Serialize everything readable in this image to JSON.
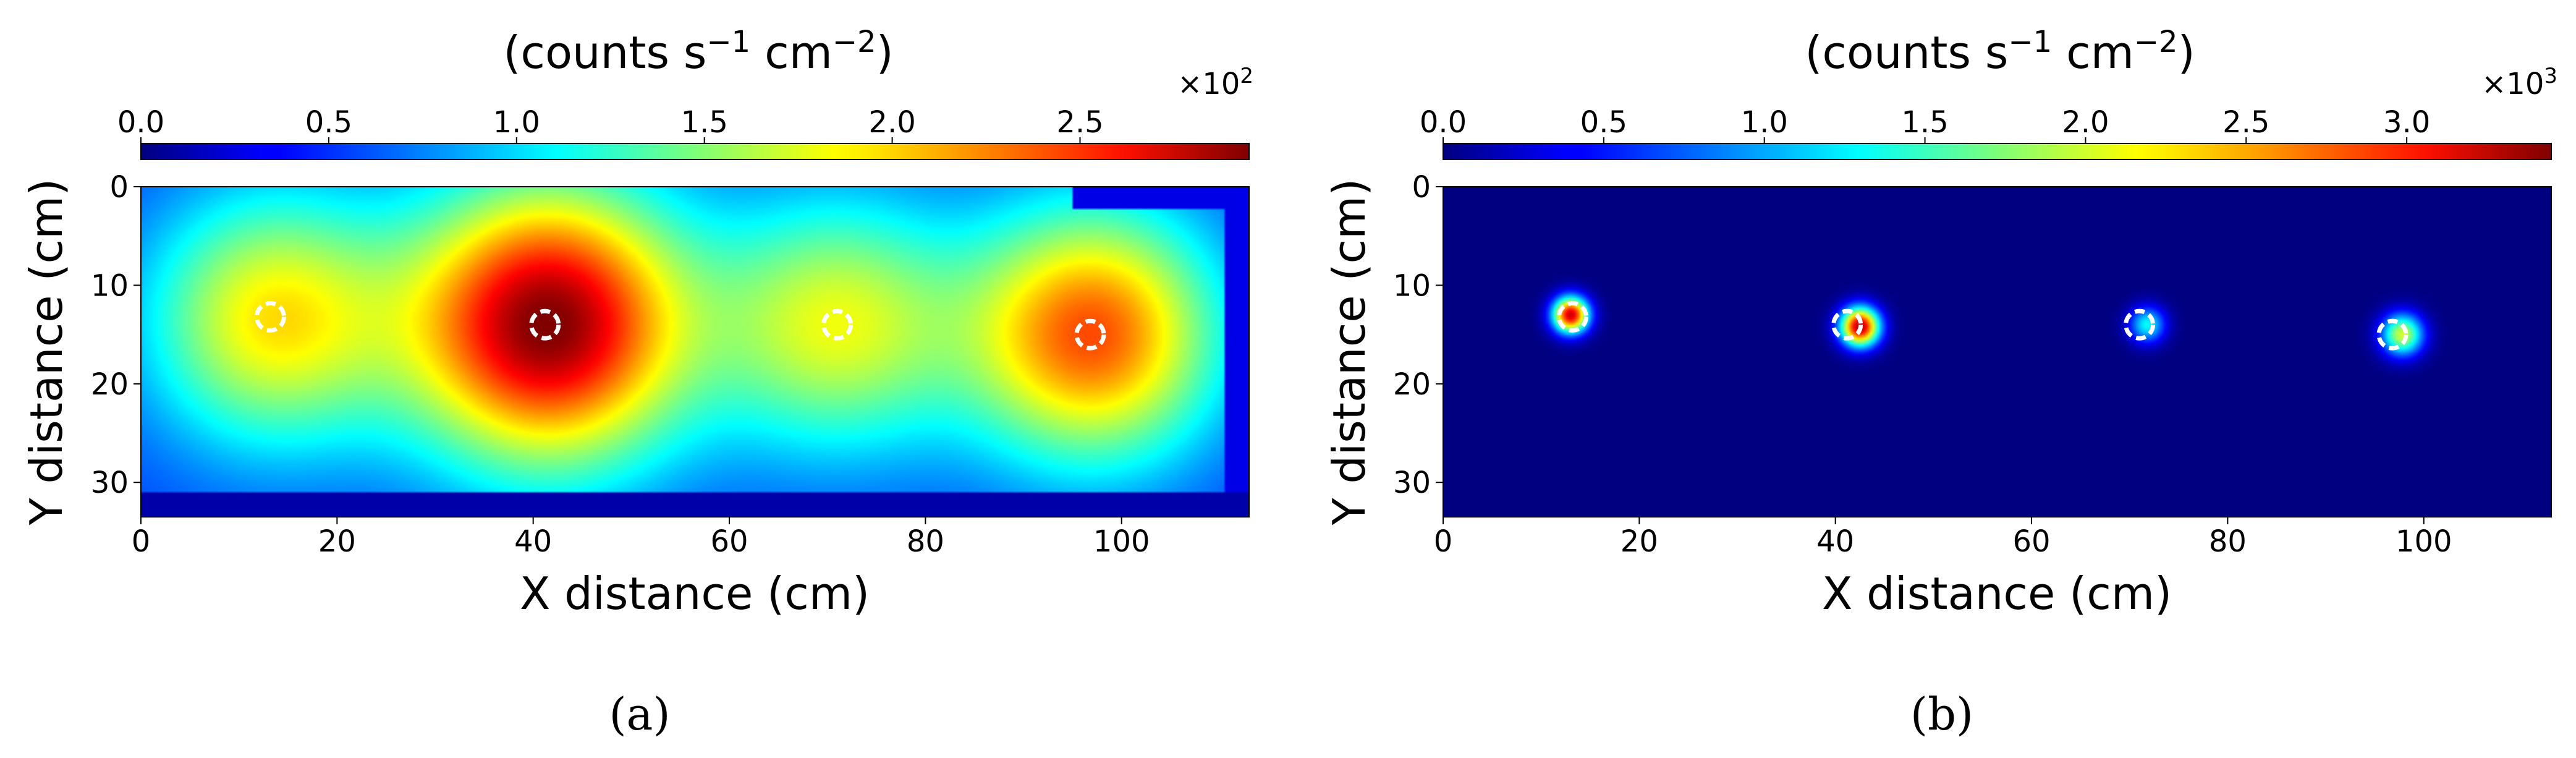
{
  "chart_data": [
    {
      "type": "heatmap",
      "panel_label": "(a)",
      "colorbar": {
        "label_main": "(counts s",
        "label_exp1": "−1",
        "label_mid": " cm",
        "label_exp2": "−2",
        "label_end": ")",
        "ticks": [
          "0.0",
          "0.5",
          "1.0",
          "1.5",
          "2.0",
          "2.5"
        ],
        "tick_values": [
          0,
          0.5,
          1.0,
          1.5,
          2.0,
          2.5
        ],
        "range": [
          0,
          2.95
        ],
        "multiplier_base": "×10",
        "multiplier_exp": "2",
        "colormap": "jet"
      },
      "xlabel": "X distance (cm)",
      "ylabel": "Y distance (cm)",
      "xlim": [
        0,
        113
      ],
      "ylim": [
        0,
        33.5
      ],
      "y_inverted": true,
      "xticks": [
        "0",
        "20",
        "40",
        "60",
        "80",
        "100"
      ],
      "xtick_values": [
        0,
        20,
        40,
        60,
        80,
        100
      ],
      "yticks": [
        "0",
        "10",
        "20",
        "30"
      ],
      "ytick_values": [
        0,
        10,
        20,
        30
      ],
      "background_level": 0.55,
      "sources": [
        {
          "x": 13.5,
          "y": 13.5,
          "peak": 1.9,
          "sigma_x": 9,
          "sigma_y": 9
        },
        {
          "x": 41.5,
          "y": 14.0,
          "peak": 2.95,
          "sigma_x": 10,
          "sigma_y": 10
        },
        {
          "x": 71.0,
          "y": 14.0,
          "peak": 1.75,
          "sigma_x": 9,
          "sigma_y": 9
        },
        {
          "x": 97.0,
          "y": 15.0,
          "peak": 2.35,
          "sigma_x": 9,
          "sigma_y": 9
        }
      ],
      "markers": [
        {
          "x": 13.2,
          "y": 13.2
        },
        {
          "x": 41.2,
          "y": 14.0
        },
        {
          "x": 71.0,
          "y": 14.0
        },
        {
          "x": 96.8,
          "y": 15.0
        }
      ]
    },
    {
      "type": "heatmap",
      "panel_label": "(b)",
      "colorbar": {
        "label_main": "(counts s",
        "label_exp1": "−1",
        "label_mid": " cm",
        "label_exp2": "−2",
        "label_end": ")",
        "ticks": [
          "0.0",
          "0.5",
          "1.0",
          "1.5",
          "2.0",
          "2.5",
          "3.0"
        ],
        "tick_values": [
          0,
          0.5,
          1.0,
          1.5,
          2.0,
          2.5,
          3.0
        ],
        "range": [
          0,
          3.45
        ],
        "multiplier_base": "×10",
        "multiplier_exp": "3",
        "colormap": "jet"
      },
      "xlabel": "X distance (cm)",
      "ylabel": "Y distance (cm)",
      "xlim": [
        0,
        113
      ],
      "ylim": [
        0,
        33.5
      ],
      "y_inverted": true,
      "xticks": [
        "0",
        "20",
        "40",
        "60",
        "80",
        "100"
      ],
      "xtick_values": [
        0,
        20,
        40,
        60,
        80,
        100
      ],
      "yticks": [
        "0",
        "10",
        "20",
        "30"
      ],
      "ytick_values": [
        0,
        10,
        20,
        30
      ],
      "background_level": 0.0,
      "sources": [
        {
          "x": 13.0,
          "y": 13.0,
          "peak": 3.2,
          "sigma_x": 1.3,
          "sigma_y": 1.3
        },
        {
          "x": 42.5,
          "y": 14.2,
          "peak": 3.3,
          "sigma_x": 1.4,
          "sigma_y": 1.4
        },
        {
          "x": 71.8,
          "y": 14.0,
          "peak": 1.3,
          "sigma_x": 1.3,
          "sigma_y": 1.3
        },
        {
          "x": 97.8,
          "y": 15.0,
          "peak": 2.0,
          "sigma_x": 1.5,
          "sigma_y": 1.5
        }
      ],
      "markers": [
        {
          "x": 13.2,
          "y": 13.2
        },
        {
          "x": 41.2,
          "y": 14.0
        },
        {
          "x": 71.0,
          "y": 14.0
        },
        {
          "x": 96.8,
          "y": 15.0
        }
      ]
    }
  ]
}
